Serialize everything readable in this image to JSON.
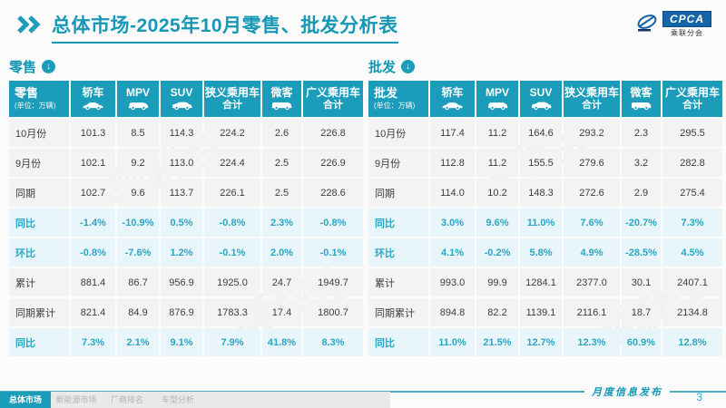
{
  "header": {
    "title": "总体市场-2025年10月零售、批发分析表",
    "logo": {
      "text": "CPCA",
      "subtext": "乘联分会"
    }
  },
  "tables": {
    "retail": {
      "name": "零售",
      "unit": "(单位：万辆)",
      "columns": [
        {
          "label": "轿车",
          "icon": "sedan-icon"
        },
        {
          "label": "MPV",
          "icon": "mpv-icon"
        },
        {
          "label": "SUV",
          "icon": "suv-icon"
        },
        {
          "label": "狭义乘用车",
          "label2": "合计"
        },
        {
          "label": "微客",
          "icon": "minibus-icon"
        },
        {
          "label": "广义乘用车",
          "label2": "合计"
        }
      ],
      "rows": [
        {
          "label": "10月份",
          "style": "normal",
          "values": [
            "101.3",
            "8.5",
            "114.3",
            "224.2",
            "2.6",
            "226.8"
          ]
        },
        {
          "label": "9月份",
          "style": "normal",
          "values": [
            "102.1",
            "9.2",
            "113.0",
            "224.4",
            "2.5",
            "226.9"
          ]
        },
        {
          "label": "同期",
          "style": "normal",
          "values": [
            "102.7",
            "9.6",
            "113.7",
            "226.1",
            "2.5",
            "228.6"
          ]
        },
        {
          "label": "同比",
          "style": "highlight",
          "values": [
            "-1.4%",
            "-10.9%",
            "0.5%",
            "-0.8%",
            "2.3%",
            "-0.8%"
          ]
        },
        {
          "label": "环比",
          "style": "highlight",
          "values": [
            "-0.8%",
            "-7.6%",
            "1.2%",
            "-0.1%",
            "2.0%",
            "-0.1%"
          ]
        },
        {
          "label": "累计",
          "style": "normal",
          "values": [
            "881.4",
            "86.7",
            "956.9",
            "1925.0",
            "24.7",
            "1949.7"
          ]
        },
        {
          "label": "同期累计",
          "style": "normal",
          "values": [
            "821.4",
            "84.9",
            "876.9",
            "1783.3",
            "17.4",
            "1800.7"
          ]
        },
        {
          "label": "同比",
          "style": "highlight",
          "values": [
            "7.3%",
            "2.1%",
            "9.1%",
            "7.9%",
            "41.8%",
            "8.3%"
          ]
        }
      ]
    },
    "wholesale": {
      "name": "批发",
      "unit": "(单位：万辆)",
      "columns": [
        {
          "label": "轿车",
          "icon": "sedan-icon"
        },
        {
          "label": "MPV",
          "icon": "mpv-icon"
        },
        {
          "label": "SUV",
          "icon": "suv-icon"
        },
        {
          "label": "狭义乘用车",
          "label2": "合计"
        },
        {
          "label": "微客",
          "icon": "minibus-icon"
        },
        {
          "label": "广义乘用车",
          "label2": "合计"
        }
      ],
      "rows": [
        {
          "label": "10月份",
          "style": "normal",
          "values": [
            "117.4",
            "11.2",
            "164.6",
            "293.2",
            "2.3",
            "295.5"
          ]
        },
        {
          "label": "9月份",
          "style": "normal",
          "values": [
            "112.8",
            "11.2",
            "155.5",
            "279.6",
            "3.2",
            "282.8"
          ]
        },
        {
          "label": "同期",
          "style": "normal",
          "values": [
            "114.0",
            "10.2",
            "148.3",
            "272.6",
            "2.9",
            "275.4"
          ]
        },
        {
          "label": "同比",
          "style": "highlight",
          "values": [
            "3.0%",
            "9.6%",
            "11.0%",
            "7.6%",
            "-20.7%",
            "7.3%"
          ]
        },
        {
          "label": "环比",
          "style": "highlight",
          "values": [
            "4.1%",
            "-0.2%",
            "5.8%",
            "4.9%",
            "-28.5%",
            "4.5%"
          ]
        },
        {
          "label": "累计",
          "style": "normal",
          "values": [
            "993.0",
            "99.9",
            "1284.1",
            "2377.0",
            "30.1",
            "2407.1"
          ]
        },
        {
          "label": "同期累计",
          "style": "normal",
          "values": [
            "894.8",
            "82.2",
            "1139.1",
            "2116.1",
            "18.7",
            "2134.8"
          ]
        },
        {
          "label": "同比",
          "style": "highlight",
          "values": [
            "11.0%",
            "21.5%",
            "12.7%",
            "12.3%",
            "60.9%",
            "12.8%"
          ]
        }
      ]
    }
  },
  "footer": {
    "publish_label": "月度信息发布",
    "page_number": "3",
    "tabs": [
      {
        "label": "总体市场",
        "active": true
      },
      {
        "label": "新能源市场",
        "active": false
      },
      {
        "label": "厂商排名",
        "active": false
      },
      {
        "label": "车型分析",
        "active": false
      }
    ]
  },
  "watermark_text": "乘联会",
  "colors": {
    "primary_teal": "#1a9cba",
    "title_teal": "#1697b5",
    "highlight_bg": "#e8f5fa",
    "highlight_text": "#2aa6c6",
    "row_bg": "#f3f3f3",
    "logo_blue": "#1565a8"
  }
}
